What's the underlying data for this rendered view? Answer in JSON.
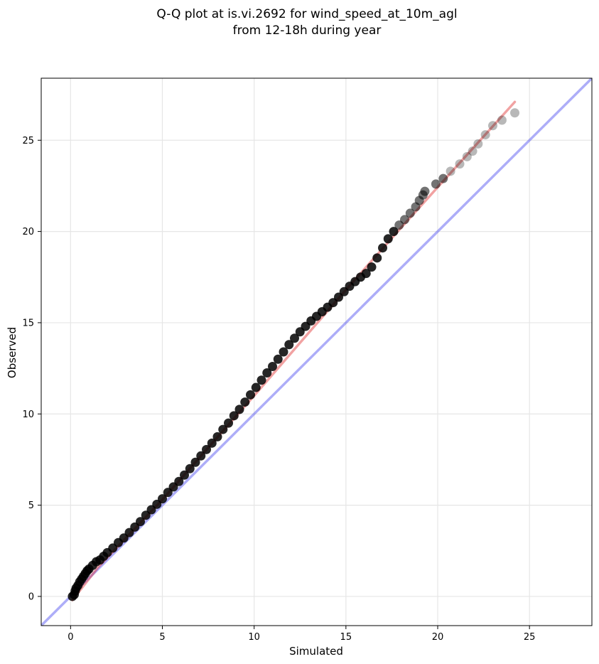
{
  "chart_data": {
    "type": "scatter",
    "title": [
      "Q-Q plot at is.vi.2692 for wind_speed_at_10m_agl",
      "from 12-18h during year"
    ],
    "xlabel": "Simulated",
    "ylabel": "Observed",
    "xlim": [
      -1.6,
      28.4
    ],
    "ylim": [
      -1.6,
      28.4
    ],
    "xticks": [
      0,
      5,
      10,
      15,
      20,
      25
    ],
    "yticks": [
      0,
      5,
      10,
      15,
      20,
      25
    ],
    "grid": true,
    "series": [
      {
        "kind": "quantile_points",
        "color": "#000000",
        "points": [
          [
            0.1,
            0.0
          ],
          [
            0.2,
            0.1
          ],
          [
            0.25,
            0.3
          ],
          [
            0.3,
            0.45
          ],
          [
            0.4,
            0.6
          ],
          [
            0.5,
            0.8
          ],
          [
            0.6,
            0.95
          ],
          [
            0.7,
            1.1
          ],
          [
            0.8,
            1.25
          ],
          [
            0.9,
            1.4
          ],
          [
            1.0,
            1.5
          ],
          [
            1.2,
            1.7
          ],
          [
            1.4,
            1.9
          ],
          [
            1.6,
            2.0
          ],
          [
            1.8,
            2.2
          ],
          [
            2.0,
            2.4
          ],
          [
            2.3,
            2.65
          ],
          [
            2.6,
            2.95
          ],
          [
            2.9,
            3.2
          ],
          [
            3.2,
            3.5
          ],
          [
            3.5,
            3.8
          ],
          [
            3.8,
            4.1
          ],
          [
            4.1,
            4.45
          ],
          [
            4.4,
            4.75
          ],
          [
            4.7,
            5.05
          ],
          [
            5.0,
            5.35
          ],
          [
            5.3,
            5.7
          ],
          [
            5.6,
            6.0
          ],
          [
            5.9,
            6.3
          ],
          [
            6.2,
            6.65
          ],
          [
            6.5,
            7.0
          ],
          [
            6.8,
            7.35
          ],
          [
            7.1,
            7.7
          ],
          [
            7.4,
            8.05
          ],
          [
            7.7,
            8.4
          ],
          [
            8.0,
            8.75
          ],
          [
            8.3,
            9.15
          ],
          [
            8.6,
            9.5
          ],
          [
            8.9,
            9.9
          ],
          [
            9.2,
            10.25
          ],
          [
            9.5,
            10.65
          ],
          [
            9.8,
            11.05
          ],
          [
            10.1,
            11.45
          ],
          [
            10.4,
            11.85
          ],
          [
            10.7,
            12.25
          ],
          [
            11.0,
            12.6
          ],
          [
            11.3,
            13.0
          ],
          [
            11.6,
            13.4
          ],
          [
            11.9,
            13.8
          ],
          [
            12.2,
            14.15
          ],
          [
            12.5,
            14.5
          ],
          [
            12.8,
            14.8
          ],
          [
            13.1,
            15.1
          ],
          [
            13.4,
            15.35
          ],
          [
            13.7,
            15.6
          ],
          [
            14.0,
            15.85
          ],
          [
            14.3,
            16.1
          ],
          [
            14.6,
            16.4
          ],
          [
            14.9,
            16.7
          ],
          [
            15.2,
            17.0
          ],
          [
            15.5,
            17.25
          ],
          [
            15.8,
            17.5
          ],
          [
            16.1,
            17.7
          ],
          [
            16.4,
            18.05
          ],
          [
            16.7,
            18.55
          ],
          [
            17.0,
            19.1
          ],
          [
            17.3,
            19.6
          ],
          [
            17.6,
            20.0
          ],
          [
            17.9,
            20.35
          ],
          [
            18.2,
            20.65
          ],
          [
            18.5,
            21.0
          ],
          [
            18.8,
            21.35
          ],
          [
            19.0,
            21.7
          ],
          [
            19.2,
            22.0
          ],
          [
            19.3,
            22.2
          ],
          [
            19.9,
            22.6
          ],
          [
            20.3,
            22.9
          ],
          [
            20.7,
            23.3
          ],
          [
            21.2,
            23.7
          ],
          [
            21.6,
            24.1
          ],
          [
            21.9,
            24.4
          ],
          [
            22.2,
            24.8
          ],
          [
            22.6,
            25.3
          ],
          [
            23.0,
            25.8
          ],
          [
            23.5,
            26.1
          ],
          [
            24.2,
            26.5
          ]
        ]
      },
      {
        "kind": "fit_line",
        "color": "#e03030",
        "points": [
          [
            0.1,
            -0.2
          ],
          [
            1.5,
            1.6
          ],
          [
            5.0,
            5.3
          ],
          [
            10.0,
            11.0
          ],
          [
            15.0,
            16.8
          ],
          [
            18.0,
            20.2
          ],
          [
            24.2,
            27.1
          ]
        ]
      },
      {
        "kind": "identity_line",
        "color": "#4a4aef",
        "points": [
          [
            -1.6,
            -1.6
          ],
          [
            28.4,
            28.4
          ]
        ]
      }
    ]
  }
}
